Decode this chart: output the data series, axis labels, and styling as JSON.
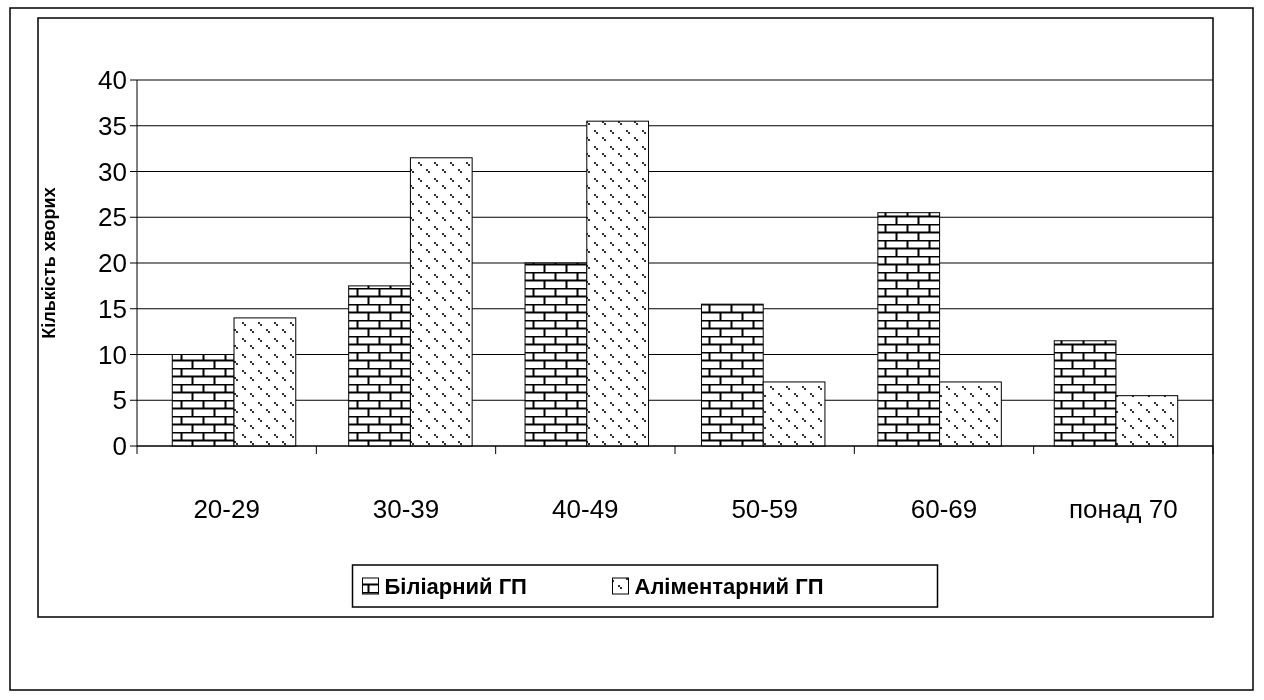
{
  "chart_data": {
    "type": "bar",
    "ylabel": "Кількість хворих",
    "categories": [
      "20-29",
      "30-39",
      "40-49",
      "50-59",
      "60-69",
      "понад 70"
    ],
    "series": [
      {
        "name": "Біліарний ГП",
        "color": "#000000",
        "values": [
          10,
          17.5,
          20,
          15.5,
          25.5,
          11.5
        ]
      },
      {
        "name": "Аліментарний ГП",
        "color": "#000000",
        "values": [
          14,
          31.5,
          35.5,
          7,
          7,
          5.5
        ]
      }
    ],
    "ylim": [
      0,
      40
    ],
    "yticks": [
      0,
      5,
      10,
      15,
      20,
      25,
      30,
      35,
      40
    ],
    "grid": "y",
    "legend": "bottom"
  }
}
